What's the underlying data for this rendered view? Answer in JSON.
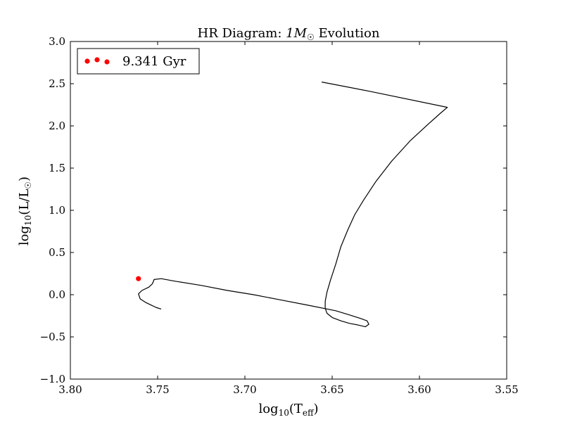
{
  "chart_data": {
    "type": "line",
    "title_main": "HR Diagram: ",
    "title_math": "1M",
    "title_sub": "☉",
    "title_tail": " Evolution",
    "xlabel_base": "log",
    "xlabel_sub": "10",
    "xlabel_var": "(T",
    "xlabel_var_sub": "eff",
    "xlabel_close": ")",
    "ylabel_base": "log",
    "ylabel_sub": "10",
    "ylabel_var": "(L/L",
    "ylabel_var_sub": "☉",
    "ylabel_close": ")",
    "xlim": [
      3.8,
      3.55
    ],
    "ylim": [
      -1.0,
      3.0
    ],
    "xticks": [
      3.8,
      3.75,
      3.7,
      3.65,
      3.6,
      3.55
    ],
    "xtick_labels": [
      "3.80",
      "3.75",
      "3.70",
      "3.65",
      "3.60",
      "3.55"
    ],
    "yticks": [
      -1.0,
      -0.5,
      0.0,
      0.5,
      1.0,
      1.5,
      2.0,
      2.5,
      3.0
    ],
    "ytick_labels": [
      "−1.0",
      "−0.5",
      "0.0",
      "0.5",
      "1.0",
      "1.5",
      "2.0",
      "2.5",
      "3.0"
    ],
    "legend_position": "top-left",
    "grid": false,
    "series": [
      {
        "color": "#000000",
        "x": [
          3.748,
          3.751,
          3.754,
          3.757,
          3.76,
          3.761,
          3.759,
          3.755,
          3.753,
          3.752,
          3.748,
          3.74,
          3.725,
          3.71,
          3.695,
          3.68,
          3.665,
          3.648,
          3.64,
          3.634,
          3.63,
          3.629,
          3.631,
          3.635,
          3.64,
          3.645,
          3.65,
          3.653,
          3.654,
          3.654,
          3.653,
          3.651,
          3.648,
          3.645,
          3.641,
          3.637,
          3.632,
          3.625,
          3.616,
          3.605,
          3.595,
          3.588,
          3.584,
          3.6285,
          3.656
        ],
        "y": [
          -0.17,
          -0.15,
          -0.12,
          -0.09,
          -0.05,
          0.01,
          0.05,
          0.09,
          0.13,
          0.18,
          0.19,
          0.16,
          0.11,
          0.05,
          0.0,
          -0.06,
          -0.12,
          -0.19,
          -0.24,
          -0.28,
          -0.31,
          -0.35,
          -0.38,
          -0.36,
          -0.34,
          -0.31,
          -0.27,
          -0.22,
          -0.16,
          -0.08,
          0.03,
          0.17,
          0.36,
          0.57,
          0.77,
          0.95,
          1.12,
          1.34,
          1.58,
          1.83,
          2.02,
          2.15,
          2.22,
          2.41,
          2.52
        ]
      }
    ],
    "marker_series": {
      "color": "#ff0000",
      "x": [
        3.761
      ],
      "y": [
        0.19
      ]
    },
    "legend_entry": "9.341 Gyr"
  }
}
